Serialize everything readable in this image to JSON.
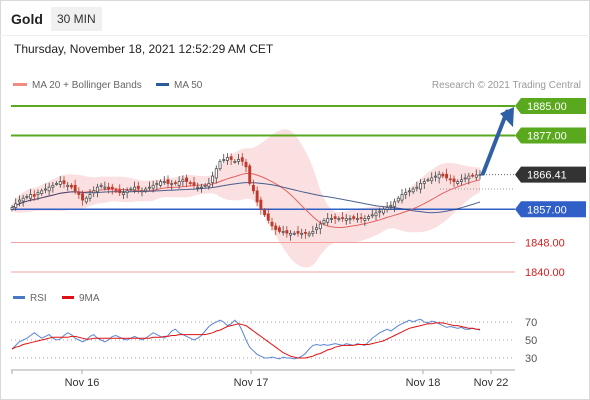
{
  "header": {
    "instrument": "Gold",
    "timeframe": "30 MIN",
    "datetime": "Thursday, November 18, 2021 12:52:29 AM CET"
  },
  "credit": "Research © 2021 Trading Central",
  "colors": {
    "resistance": "#5aa81e",
    "support_main": "#2f5fc7",
    "support_other": "#f0a0a0",
    "support_text": "#d81e1e",
    "price_box": "#333333",
    "arrow": "#2f5fa4",
    "ma20": "#e66060",
    "bands": "#f6c6c6",
    "ma50": "#1e3c78",
    "rsi": "#5b86d6",
    "rsi_ma": "#e01010",
    "candle_up": "#444444",
    "candle_down": "#c0392b"
  },
  "chart_data": [
    {
      "type": "candlestick",
      "legend": [
        {
          "label": "MA 20 + Bollinger Bands",
          "color": "#f28b82"
        },
        {
          "label": "MA 50",
          "color": "#2c5a9e"
        }
      ],
      "y_range": [
        1835,
        1890
      ],
      "x_ticks": [
        "Nov 16",
        "Nov 17",
        "Nov 18",
        "Nov 22"
      ],
      "current_price": "1866.41",
      "levels": [
        {
          "label": "1885.00",
          "value": 1885.0,
          "kind": "resistance"
        },
        {
          "label": "1877.00",
          "value": 1877.0,
          "kind": "resistance"
        },
        {
          "label": "1857.00",
          "value": 1857.0,
          "kind": "support_main"
        },
        {
          "label": "1848.00",
          "value": 1848.0,
          "kind": "support"
        },
        {
          "label": "1840.00",
          "value": 1840.0,
          "kind": "support"
        }
      ],
      "forecast_target": "1885.00",
      "close_series": [
        1857.5,
        1858.5,
        1859.5,
        1860,
        1860.5,
        1861,
        1860.5,
        1861.5,
        1862,
        1862.5,
        1863,
        1863.5,
        1864,
        1864.5,
        1864,
        1863.5,
        1863,
        1862,
        1861,
        1859.5,
        1860,
        1861,
        1862,
        1863,
        1863.5,
        1863,
        1862.5,
        1862.5,
        1862,
        1861.5,
        1861.5,
        1862,
        1862.5,
        1863,
        1862.5,
        1862,
        1862.5,
        1863,
        1863.5,
        1864,
        1864.5,
        1864.5,
        1864,
        1864,
        1864,
        1864.5,
        1865,
        1864.5,
        1864,
        1863.5,
        1863,
        1863,
        1863.5,
        1864,
        1866,
        1868,
        1870,
        1870.5,
        1871,
        1870.5,
        1870,
        1870.5,
        1870,
        1868.5,
        1864,
        1862,
        1859,
        1857,
        1855.5,
        1854,
        1852.5,
        1851.5,
        1851,
        1851,
        1850.5,
        1850.5,
        1850.5,
        1850.5,
        1850.5,
        1850.5,
        1850.5,
        1851,
        1852,
        1853,
        1854,
        1854.5,
        1854.5,
        1854.5,
        1854.5,
        1854.5,
        1854.5,
        1854.5,
        1854.5,
        1854.5,
        1854.5,
        1854.5,
        1855,
        1855.5,
        1856,
        1856.5,
        1857,
        1857.5,
        1858,
        1859,
        1860,
        1861,
        1861.5,
        1862,
        1862.5,
        1863,
        1864,
        1864.5,
        1865,
        1865.5,
        1866,
        1866.5,
        1866,
        1865.5,
        1865,
        1864.5,
        1864.5,
        1865,
        1865.5,
        1866,
        1866.2,
        1866.3,
        1866.41
      ],
      "rsi": {
        "label": "RSI",
        "ma_label": "9MA",
        "ticks": [
          "70",
          "50",
          "30"
        ],
        "range": [
          20,
          80
        ],
        "values": [
          40,
          44,
          48,
          50,
          52,
          55,
          58,
          55,
          52,
          54,
          56,
          52,
          50,
          51,
          55,
          58,
          56,
          52,
          50,
          48,
          50,
          54,
          56,
          52,
          50,
          48,
          50,
          54,
          55,
          53,
          51,
          50,
          52,
          54,
          52,
          50,
          52,
          55,
          58,
          56,
          54,
          52,
          55,
          60,
          62,
          58,
          56,
          54,
          52,
          50,
          52,
          55,
          60,
          65,
          68,
          70,
          72,
          70,
          66,
          68,
          72,
          68,
          60,
          50,
          42,
          38,
          34,
          32,
          30,
          30,
          31,
          30,
          29,
          31,
          30,
          30,
          29,
          30,
          32,
          35,
          40,
          44,
          45,
          44,
          45,
          44,
          45,
          46,
          45,
          44,
          46,
          45,
          44,
          46,
          45,
          44,
          48,
          52,
          55,
          58,
          60,
          62,
          60,
          63,
          66,
          68,
          70,
          72,
          70,
          72,
          73,
          70,
          69,
          71,
          70,
          68,
          66,
          64,
          65,
          64,
          63,
          64,
          62,
          62,
          63,
          62,
          61
        ],
        "ma_values": [
          40,
          42,
          43,
          45,
          46,
          47,
          48,
          49,
          50,
          51,
          52,
          53,
          53,
          53,
          53,
          53,
          54,
          54,
          53,
          52,
          51,
          51,
          52,
          52,
          52,
          52,
          52,
          52,
          52,
          52,
          52,
          52,
          52,
          52,
          52,
          52,
          52,
          52,
          53,
          53,
          53,
          54,
          54,
          55,
          55,
          56,
          56,
          56,
          56,
          56,
          56,
          56,
          56,
          57,
          58,
          60,
          61,
          63,
          65,
          66,
          67,
          68,
          67,
          66,
          63,
          60,
          57,
          54,
          51,
          48,
          45,
          42,
          39,
          36,
          34,
          32,
          31,
          30,
          30,
          30,
          31,
          32,
          34,
          35,
          37,
          39,
          40,
          42,
          43,
          44,
          44,
          44,
          44,
          45,
          45,
          45,
          45,
          46,
          47,
          48,
          49,
          51,
          53,
          55,
          57,
          59,
          61,
          63,
          64,
          65,
          66,
          67,
          68,
          68,
          69,
          69,
          69,
          68,
          67,
          66,
          66,
          65,
          64,
          63,
          63,
          62,
          62
        ]
      }
    }
  ]
}
